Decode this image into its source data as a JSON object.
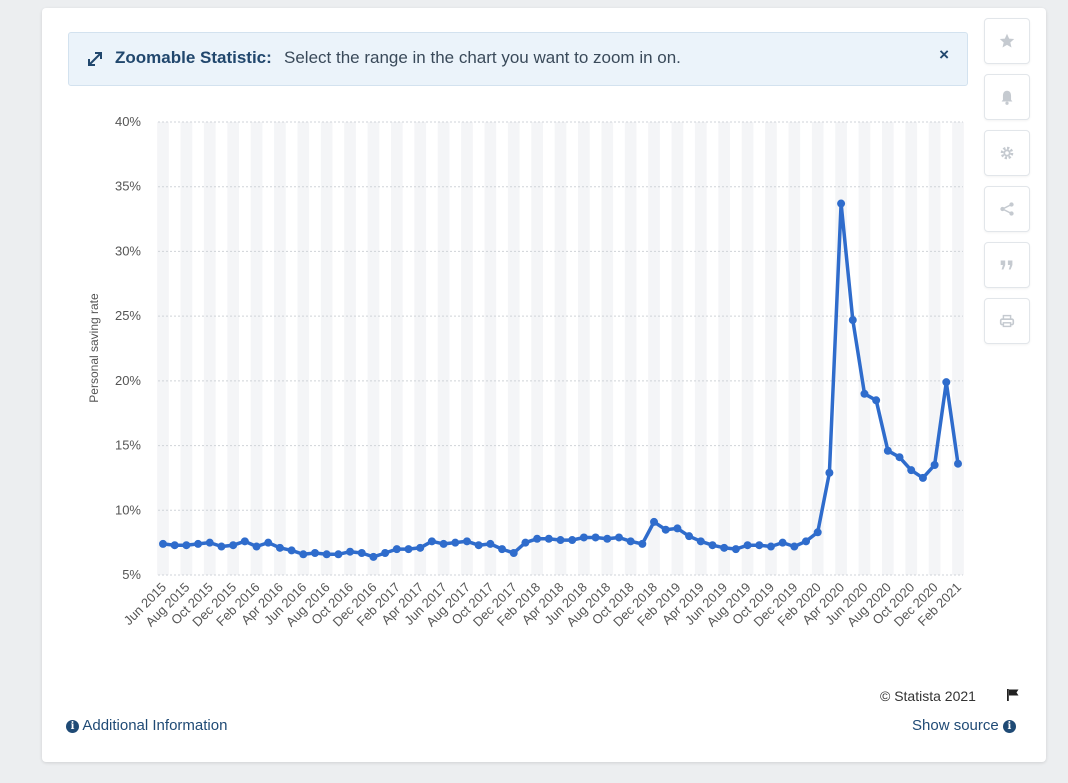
{
  "banner": {
    "title": "Zoomable Statistic:",
    "message": "Select the range in the chart you want to zoom in on.",
    "close": "×"
  },
  "toolbar": {
    "icons": [
      "star-icon",
      "bell-icon",
      "gear-icon",
      "share-icon",
      "quote-icon",
      "print-icon"
    ]
  },
  "footer": {
    "copyright": "© Statista 2021",
    "additional_info": "Additional Information",
    "show_source": "Show source"
  },
  "colors": {
    "line": "#2f6ccc",
    "banner_bg": "#ebf3fa",
    "link": "#1f4a75"
  },
  "chart_data": {
    "type": "line",
    "title": "",
    "xlabel": "",
    "ylabel": "Personal saving rate",
    "ylim": [
      5,
      40
    ],
    "y_ticks": [
      "5%",
      "10%",
      "15%",
      "20%",
      "25%",
      "30%",
      "35%",
      "40%"
    ],
    "grid": true,
    "x_tick_labels": [
      "Jun 2015",
      "Aug 2015",
      "Oct 2015",
      "Dec 2015",
      "Feb 2016",
      "Apr 2016",
      "Jun 2016",
      "Aug 2016",
      "Oct 2016",
      "Dec 2016",
      "Feb 2017",
      "Apr 2017",
      "Jun 2017",
      "Aug 2017",
      "Oct 2017",
      "Dec 2017",
      "Feb 2018",
      "Apr 2018",
      "Jun 2018",
      "Aug 2018",
      "Oct 2018",
      "Dec 2018",
      "Feb 2019",
      "Apr 2019",
      "Jun 2019",
      "Aug 2019",
      "Oct 2019",
      "Dec 2019",
      "Feb 2020",
      "Apr 2020",
      "Jun 2020",
      "Aug 2020",
      "Oct 2020",
      "Dec 2020",
      "Feb 2021"
    ],
    "x": [
      "Jun 2015",
      "Jul 2015",
      "Aug 2015",
      "Sep 2015",
      "Oct 2015",
      "Nov 2015",
      "Dec 2015",
      "Jan 2016",
      "Feb 2016",
      "Mar 2016",
      "Apr 2016",
      "May 2016",
      "Jun 2016",
      "Jul 2016",
      "Aug 2016",
      "Sep 2016",
      "Oct 2016",
      "Nov 2016",
      "Dec 2016",
      "Jan 2017",
      "Feb 2017",
      "Mar 2017",
      "Apr 2017",
      "May 2017",
      "Jun 2017",
      "Jul 2017",
      "Aug 2017",
      "Sep 2017",
      "Oct 2017",
      "Nov 2017",
      "Dec 2017",
      "Jan 2018",
      "Feb 2018",
      "Mar 2018",
      "Apr 2018",
      "May 2018",
      "Jun 2018",
      "Jul 2018",
      "Aug 2018",
      "Sep 2018",
      "Oct 2018",
      "Nov 2018",
      "Dec 2018",
      "Jan 2019",
      "Feb 2019",
      "Mar 2019",
      "Apr 2019",
      "May 2019",
      "Jun 2019",
      "Jul 2019",
      "Aug 2019",
      "Sep 2019",
      "Oct 2019",
      "Nov 2019",
      "Dec 2019",
      "Jan 2020",
      "Feb 2020",
      "Mar 2020",
      "Apr 2020",
      "May 2020",
      "Jun 2020",
      "Jul 2020",
      "Aug 2020",
      "Sep 2020",
      "Oct 2020",
      "Nov 2020",
      "Dec 2020",
      "Jan 2021",
      "Feb 2021"
    ],
    "series": [
      {
        "values": [
          7.4,
          7.3,
          7.3,
          7.4,
          7.5,
          7.2,
          7.3,
          7.6,
          7.2,
          7.5,
          7.1,
          6.9,
          6.6,
          6.7,
          6.6,
          6.6,
          6.8,
          6.7,
          6.4,
          6.7,
          7.0,
          7.0,
          7.1,
          7.6,
          7.4,
          7.5,
          7.6,
          7.3,
          7.4,
          7.0,
          6.7,
          7.5,
          7.8,
          7.8,
          7.7,
          7.7,
          7.9,
          7.9,
          7.8,
          7.9,
          7.6,
          7.4,
          9.1,
          8.5,
          8.6,
          8.0,
          7.6,
          7.3,
          7.1,
          7.0,
          7.3,
          7.3,
          7.2,
          7.5,
          7.2,
          7.6,
          8.3,
          12.9,
          33.7,
          24.7,
          19.0,
          18.5,
          14.6,
          14.1,
          13.1,
          12.5,
          13.5,
          19.9,
          13.6
        ]
      }
    ]
  }
}
